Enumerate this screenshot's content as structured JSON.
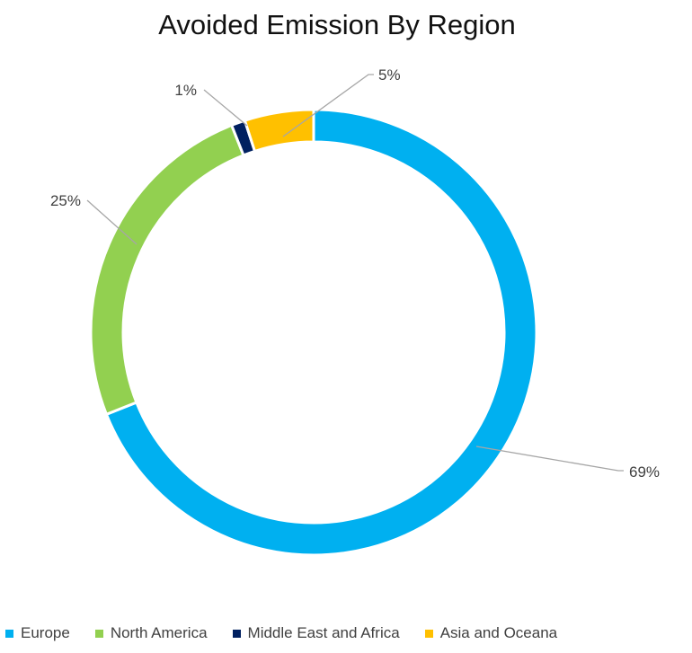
{
  "chart_data": {
    "type": "pie",
    "variant": "donut",
    "title": "Avoided Emission By Region",
    "series": [
      {
        "name": "Europe",
        "value": 69,
        "label": "69%",
        "color": "#00B0F0"
      },
      {
        "name": "North America",
        "value": 25,
        "label": "25%",
        "color": "#92D050"
      },
      {
        "name": "Middle East and Africa",
        "value": 1,
        "label": "1%",
        "color": "#002060"
      },
      {
        "name": "Asia and Oceana",
        "value": 5,
        "label": "5%",
        "color": "#FFC000"
      }
    ],
    "legend": {
      "position": "bottom"
    },
    "leader_line_color": "#A6A6A6"
  }
}
